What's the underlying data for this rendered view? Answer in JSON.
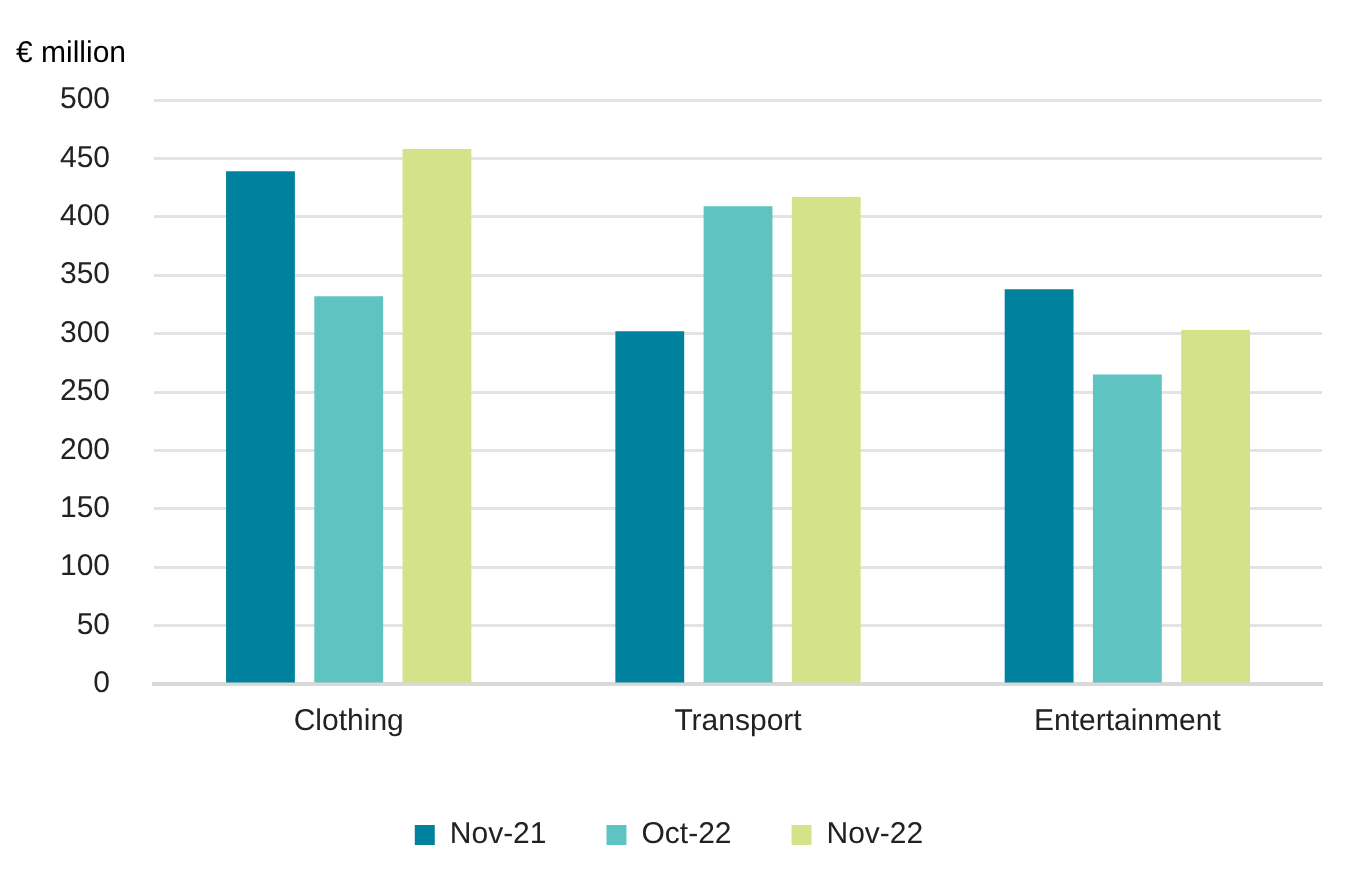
{
  "chart_data": {
    "type": "bar",
    "ylabel": "€ million",
    "categories": [
      "Clothing",
      "Transport",
      "Entertainment"
    ],
    "series": [
      {
        "name": "Nov-21",
        "color": "#00829f",
        "values": [
          439,
          302,
          338
        ]
      },
      {
        "name": "Oct-22",
        "color": "#5fc4c1",
        "values": [
          332,
          409,
          265
        ]
      },
      {
        "name": "Nov-22",
        "color": "#d4e38a",
        "values": [
          458,
          417,
          303
        ]
      }
    ],
    "ylim": [
      0,
      500
    ],
    "yticks": [
      0,
      50,
      100,
      150,
      200,
      250,
      300,
      350,
      400,
      450,
      500
    ],
    "grid": "y",
    "legend": "bottom"
  }
}
